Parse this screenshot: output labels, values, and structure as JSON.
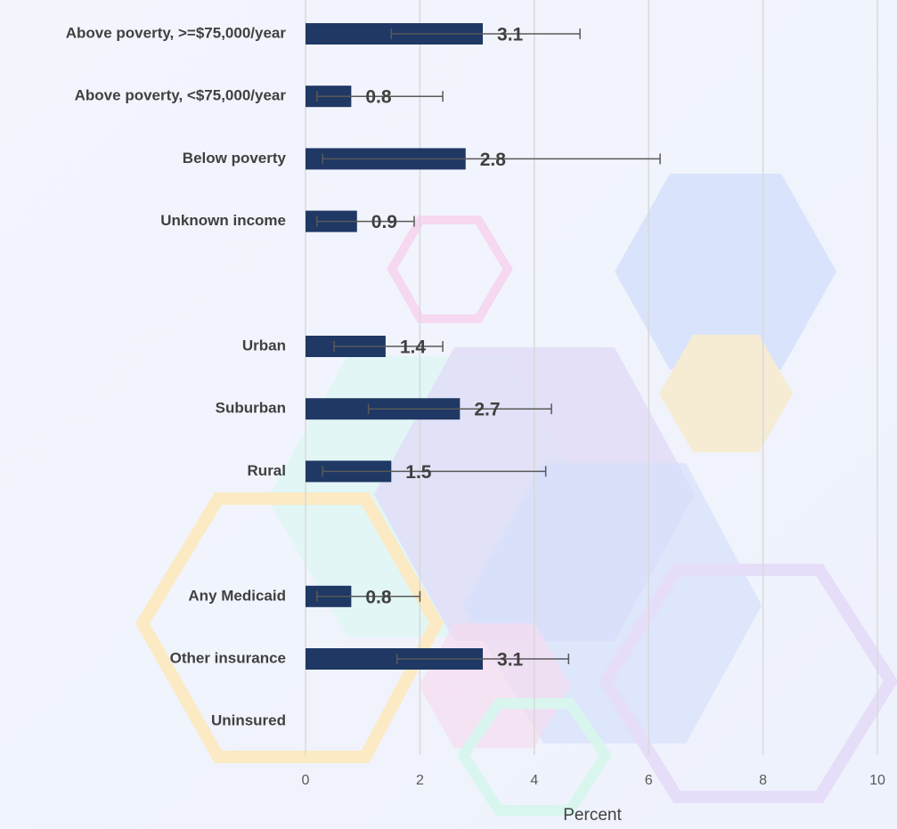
{
  "chart_data": {
    "type": "bar",
    "orientation": "horizontal",
    "categories": [
      "Above poverty, >=$75,000/year",
      "Above poverty, <$75,000/year",
      "Below poverty",
      "Unknown income",
      null,
      "Urban",
      "Suburban",
      "Rural",
      null,
      "Any Medicaid",
      "Other insurance",
      "Uninsured"
    ],
    "values": [
      3.1,
      0.8,
      2.8,
      0.9,
      null,
      1.4,
      2.7,
      1.5,
      null,
      0.8,
      3.1,
      null
    ],
    "ci_low": [
      1.5,
      0.2,
      0.3,
      0.2,
      null,
      0.5,
      1.1,
      0.3,
      null,
      0.2,
      1.6,
      null
    ],
    "ci_high": [
      4.8,
      2.4,
      6.2,
      1.9,
      null,
      2.4,
      4.3,
      4.2,
      null,
      2.0,
      4.6,
      null
    ],
    "color": "#1f3864",
    "xlabel": "Percent",
    "xlim": [
      0,
      10
    ],
    "xticks": [
      0,
      2,
      4,
      6,
      8,
      10
    ],
    "grid": true
  }
}
